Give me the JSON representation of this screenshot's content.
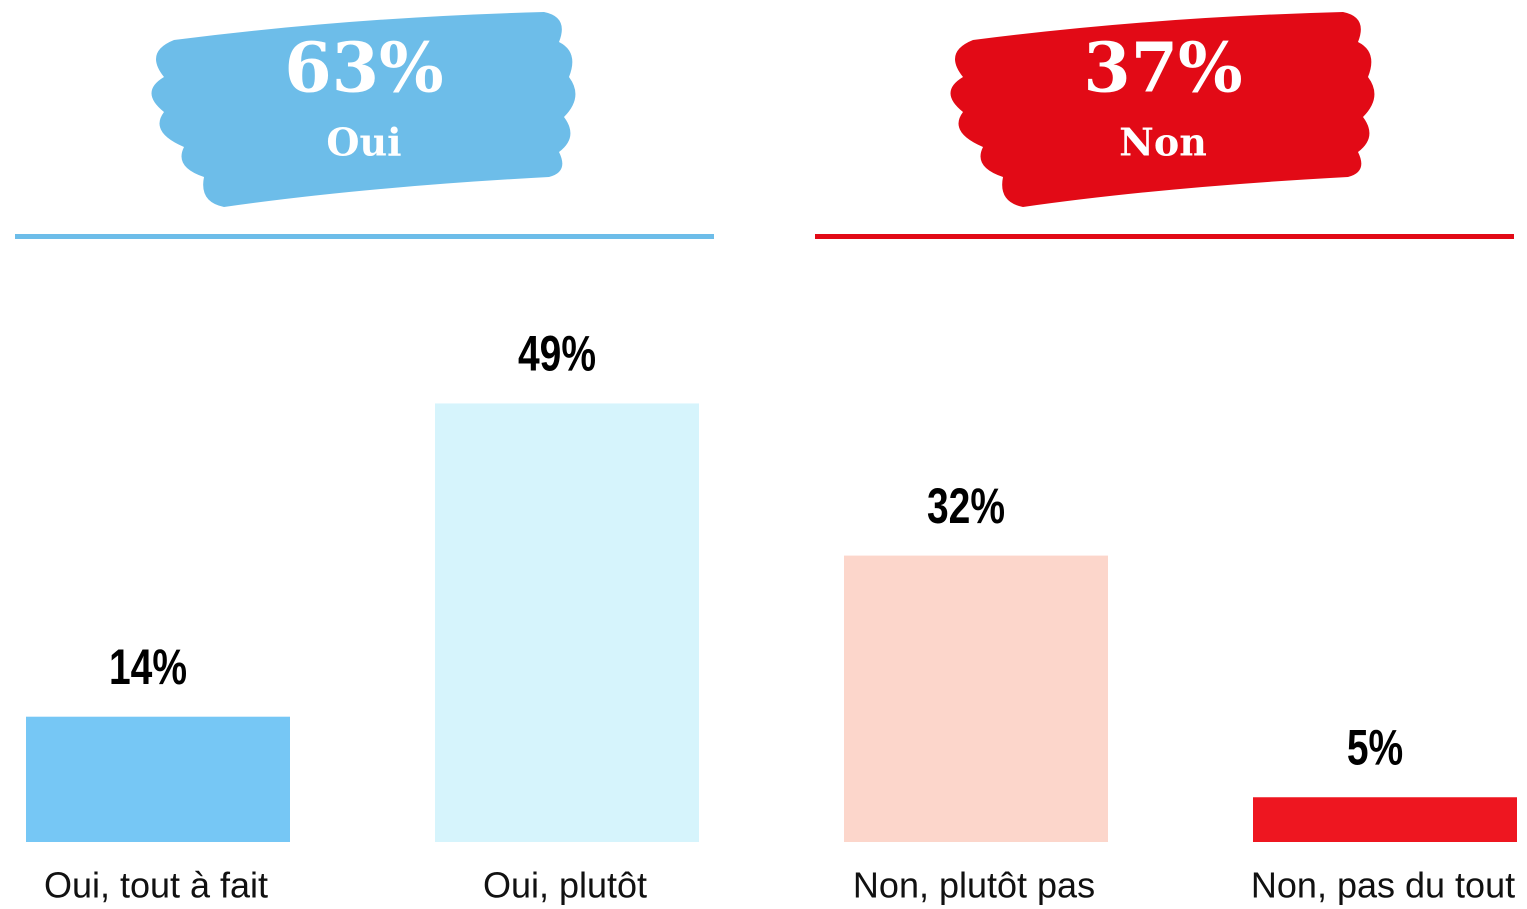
{
  "chart_data": {
    "type": "bar",
    "summary": [
      {
        "name": "Oui",
        "value": 63,
        "value_label": "63%",
        "color": "#6dbde9"
      },
      {
        "name": "Non",
        "value": 37,
        "value_label": "37%",
        "color": "#e20a16"
      }
    ],
    "categories": [
      "Oui, tout à fait",
      "Oui, plutôt",
      "Non, plutôt pas",
      "Non, pas du tout"
    ],
    "values": [
      14,
      49,
      32,
      5
    ],
    "value_labels": [
      "14%",
      "49%",
      "32%",
      "5%"
    ],
    "colors": [
      "#76c7f5",
      "#d6f4fc",
      "#fcd6cb",
      "#ee1620"
    ]
  }
}
